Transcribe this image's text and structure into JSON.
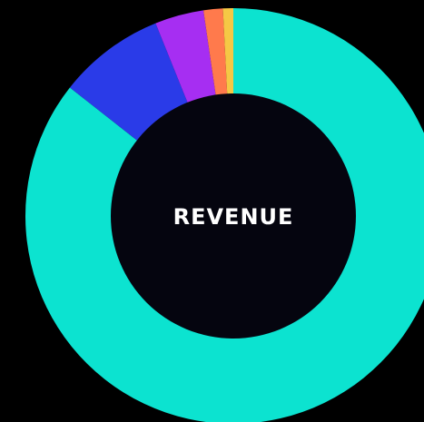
{
  "chart_data": {
    "type": "donut",
    "title": "REVENUE",
    "values": [
      85.6,
      8.3,
      3.8,
      1.5,
      0.8
    ],
    "colors": [
      "#0ce3d0",
      "#2a3be8",
      "#a62ef2",
      "#ff7a4c",
      "#f5c845"
    ]
  }
}
